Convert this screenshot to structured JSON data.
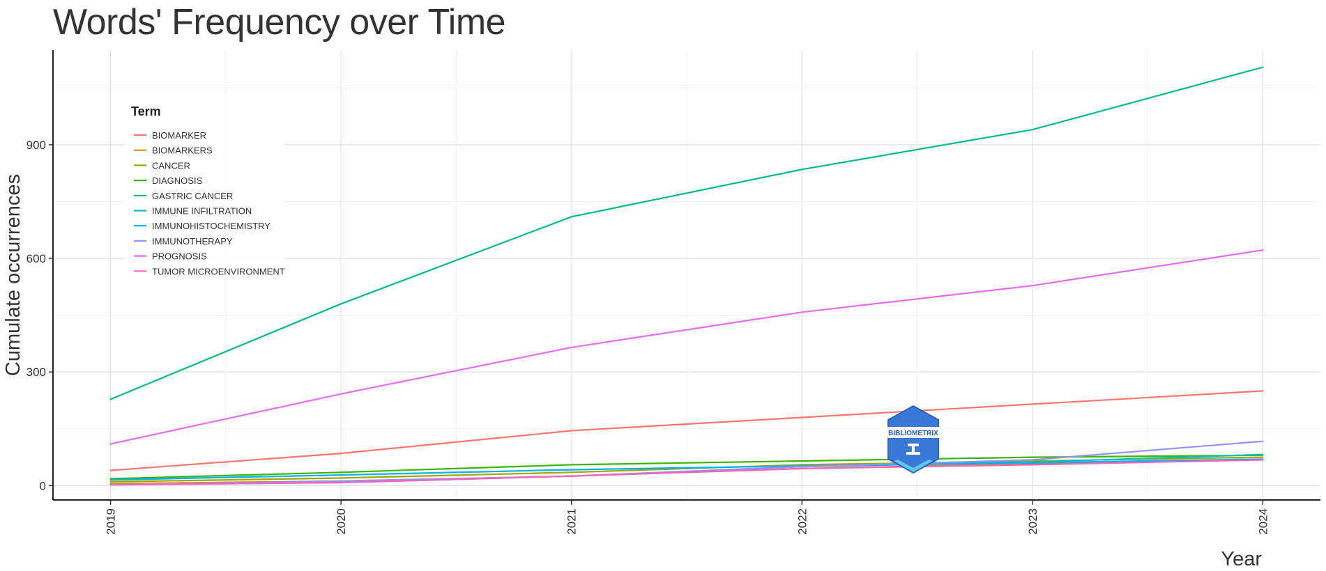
{
  "chart_data": {
    "type": "line",
    "title": "Words' Frequency over Time",
    "xlabel": "Year",
    "ylabel": "Cumulate occurrences",
    "x": [
      2019,
      2020,
      2021,
      2022,
      2023,
      2024
    ],
    "xlim": [
      2018.75,
      2024.25
    ],
    "ylim": [
      -38,
      1150
    ],
    "yticks": [
      0,
      300,
      600,
      900
    ],
    "y_minor_ticks": [
      150,
      450,
      750,
      1050
    ],
    "grid": true,
    "legend": {
      "title": "Term",
      "position": "top-left, inside plot"
    },
    "series": [
      {
        "name": "BIOMARKER",
        "color": "#F8766D",
        "values": [
          40,
          85,
          145,
          180,
          215,
          250
        ]
      },
      {
        "name": "BIOMARKERS",
        "color": "#D89000",
        "values": [
          5,
          12,
          25,
          45,
          58,
          68
        ]
      },
      {
        "name": "CANCER",
        "color": "#A3A500",
        "values": [
          10,
          20,
          35,
          55,
          65,
          75
        ]
      },
      {
        "name": "DIAGNOSIS",
        "color": "#39B600",
        "values": [
          18,
          35,
          55,
          65,
          75,
          80
        ]
      },
      {
        "name": "GASTRIC CANCER",
        "color": "#00BF7D",
        "values": [
          228,
          480,
          710,
          835,
          940,
          1105
        ]
      },
      {
        "name": "IMMUNE INFILTRATION",
        "color": "#00BFC4",
        "values": [
          2,
          8,
          25,
          50,
          62,
          82
        ]
      },
      {
        "name": "IMMUNOHISTOCHEMISTRY",
        "color": "#00B0F6",
        "values": [
          15,
          28,
          42,
          52,
          60,
          70
        ]
      },
      {
        "name": "IMMUNOTHERAPY",
        "color": "#9590FF",
        "values": [
          2,
          12,
          25,
          50,
          68,
          117
        ]
      },
      {
        "name": "PROGNOSIS",
        "color": "#E76BF3",
        "values": [
          110,
          242,
          365,
          458,
          528,
          622
        ]
      },
      {
        "name": "TUMOR MICROENVIRONMENT",
        "color": "#FF62BC",
        "values": [
          2,
          8,
          25,
          45,
          55,
          68
        ]
      }
    ]
  },
  "watermark": {
    "text": "BIBLIOMETRIX",
    "color": "#3b82d8"
  }
}
